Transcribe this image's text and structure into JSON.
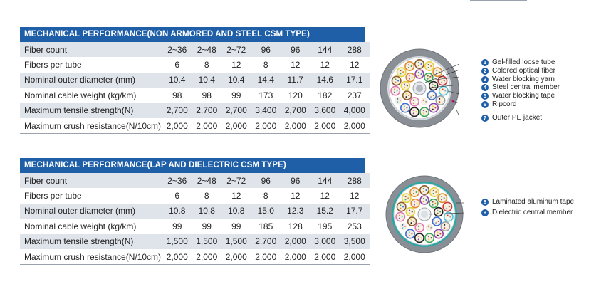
{
  "tables": [
    {
      "title": "MECHANICAL PERFORMANCE(NON ARMORED AND STEEL CSM TYPE)",
      "rows": [
        {
          "label": "Fiber count",
          "values": [
            "2~36",
            "2~48",
            "2~72",
            "96",
            "96",
            "144",
            "288"
          ]
        },
        {
          "label": "Fibers per tube",
          "values": [
            "6",
            "8",
            "12",
            "8",
            "12",
            "12",
            "12"
          ]
        },
        {
          "label": "Nominal outer diameter (mm)",
          "values": [
            "10.4",
            "10.4",
            "10.4",
            "14.4",
            "11.7",
            "14.6",
            "17.1"
          ]
        },
        {
          "label": "Nominal cable weight (kg/km)",
          "values": [
            "98",
            "98",
            "99",
            "173",
            "120",
            "182",
            "237"
          ]
        },
        {
          "label": "Maximum tensile strength(N)",
          "values": [
            "2,700",
            "2,700",
            "2,700",
            "3,400",
            "2,700",
            "3,600",
            "4,000"
          ]
        },
        {
          "label": "Maximum crush resistance(N/10cm)",
          "values": [
            "2,000",
            "2,000",
            "2,000",
            "2,000",
            "2,000",
            "2,000",
            "2,000"
          ]
        }
      ]
    },
    {
      "title": "MECHANICAL PERFORMANCE(LAP AND DIELECTRIC CSM TYPE)",
      "rows": [
        {
          "label": "Fiber count",
          "values": [
            "2~36",
            "2~48",
            "2~72",
            "96",
            "96",
            "144",
            "288"
          ]
        },
        {
          "label": "Fibers per tube",
          "values": [
            "6",
            "8",
            "12",
            "8",
            "12",
            "12",
            "12"
          ]
        },
        {
          "label": "Nominal outer diameter (mm)",
          "values": [
            "10.8",
            "10.8",
            "10.8",
            "15.0",
            "12.3",
            "15.2",
            "17.7"
          ]
        },
        {
          "label": "Nominal cable weight (kg/km)",
          "values": [
            "99",
            "99",
            "99",
            "185",
            "128",
            "195",
            "253"
          ]
        },
        {
          "label": "Maximum tensile strength(N)",
          "values": [
            "1,500",
            "1,500",
            "1,500",
            "2,700",
            "2,000",
            "3,000",
            "3,500"
          ]
        },
        {
          "label": "Maximum crush resistance(N/10cm)",
          "values": [
            "2,000",
            "2,000",
            "2,000",
            "2,000",
            "2,000",
            "2,000",
            "2,000"
          ]
        }
      ]
    }
  ],
  "legend1": [
    {
      "num": "1",
      "text": "Gel-filled loose tube"
    },
    {
      "num": "2",
      "text": "Colored optical fiber"
    },
    {
      "num": "3",
      "text": "Water blocking yarn"
    },
    {
      "num": "4",
      "text": "Steel central member"
    },
    {
      "num": "5",
      "text": "Water blocking tape"
    },
    {
      "num": "6",
      "text": "Ripcord"
    },
    {
      "num": "7",
      "text": "Outer PE jacket"
    }
  ],
  "legend2": [
    {
      "num": "8",
      "text": "Laminated aluminum tape"
    },
    {
      "num": "9",
      "text": "Dielectric central member"
    }
  ],
  "colors": {
    "header": "#1f5fa8",
    "row_shade": "#dfe3ea",
    "jacket": "#8a8f96",
    "aluminum_tape": "#2aa7a3",
    "badge": "#1f5fa8"
  },
  "icons": [
    "cable-cross-section-steel-csm-icon",
    "cable-cross-section-lap-dielectric-icon"
  ]
}
